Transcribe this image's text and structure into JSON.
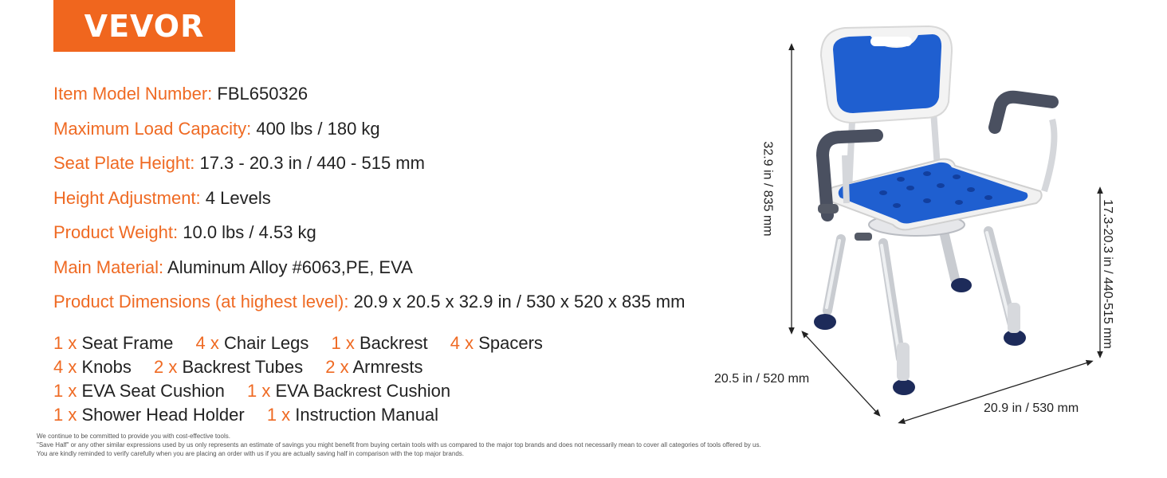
{
  "brand": {
    "logo_text": "VEVOR",
    "color": "#f0661e"
  },
  "specs": [
    {
      "label": "Item Model Number:",
      "value": " FBL650326"
    },
    {
      "label": "Maximum Load Capacity:",
      "value": " 400 lbs / 180 kg"
    },
    {
      "label": "Seat Plate Height:",
      "value": " 17.3 - 20.3 in / 440 - 515 mm"
    },
    {
      "label": "Height Adjustment:",
      "value": " 4 Levels"
    },
    {
      "label": "Product Weight:",
      "value": " 10.0 lbs / 4.53 kg"
    },
    {
      "label": "Main Material:",
      "value": " Aluminum Alloy #6063,PE, EVA"
    },
    {
      "label": "Product Dimensions (at highest level):",
      "value": " 20.9 x 20.5 x 32.9 in / 530 x 520 x 835 mm"
    }
  ],
  "contents": [
    [
      {
        "qty": "1 x",
        "name": " Seat Frame"
      },
      {
        "qty": "4 x",
        "name": " Chair Legs"
      },
      {
        "qty": "1 x",
        "name": " Backrest"
      },
      {
        "qty": "4 x",
        "name": " Spacers"
      }
    ],
    [
      {
        "qty": "4 x",
        "name": " Knobs"
      },
      {
        "qty": "2 x",
        "name": " Backrest Tubes"
      },
      {
        "qty": "2 x",
        "name": " Armrests"
      }
    ],
    [
      {
        "qty": "1 x",
        "name": " EVA Seat Cushion"
      },
      {
        "qty": "1 x",
        "name": " EVA Backrest Cushion"
      }
    ],
    [
      {
        "qty": "1 x",
        "name": " Shower Head Holder"
      },
      {
        "qty": "1 x",
        "name": " Instruction Manual"
      }
    ]
  ],
  "disclaimer": [
    "We continue to be committed to provide you with cost-effective tools.",
    "\"Save Half\" or any other similar expressions used by us only represents an estimate of savings you might benefit from buying certain tools with us compared to the major top brands and does not necessarily mean to cover all categories of tools offered by us.",
    "You are kindly reminded to verify carefully when you are placing an order with us if you are actually saving half in comparison with the top major brands."
  ],
  "dimensions": {
    "height": "32.9 in / 835 mm",
    "depth": "20.5 in / 520 mm",
    "width": "20.9 in / 530 mm",
    "seat_height": "17.3-20.3 in / 440-515 mm"
  },
  "colors": {
    "accent": "#ef6a23",
    "seat_blue": "#1f5fd0",
    "frame_white": "#f3f3f3",
    "foot_navy": "#1d2b5a"
  }
}
